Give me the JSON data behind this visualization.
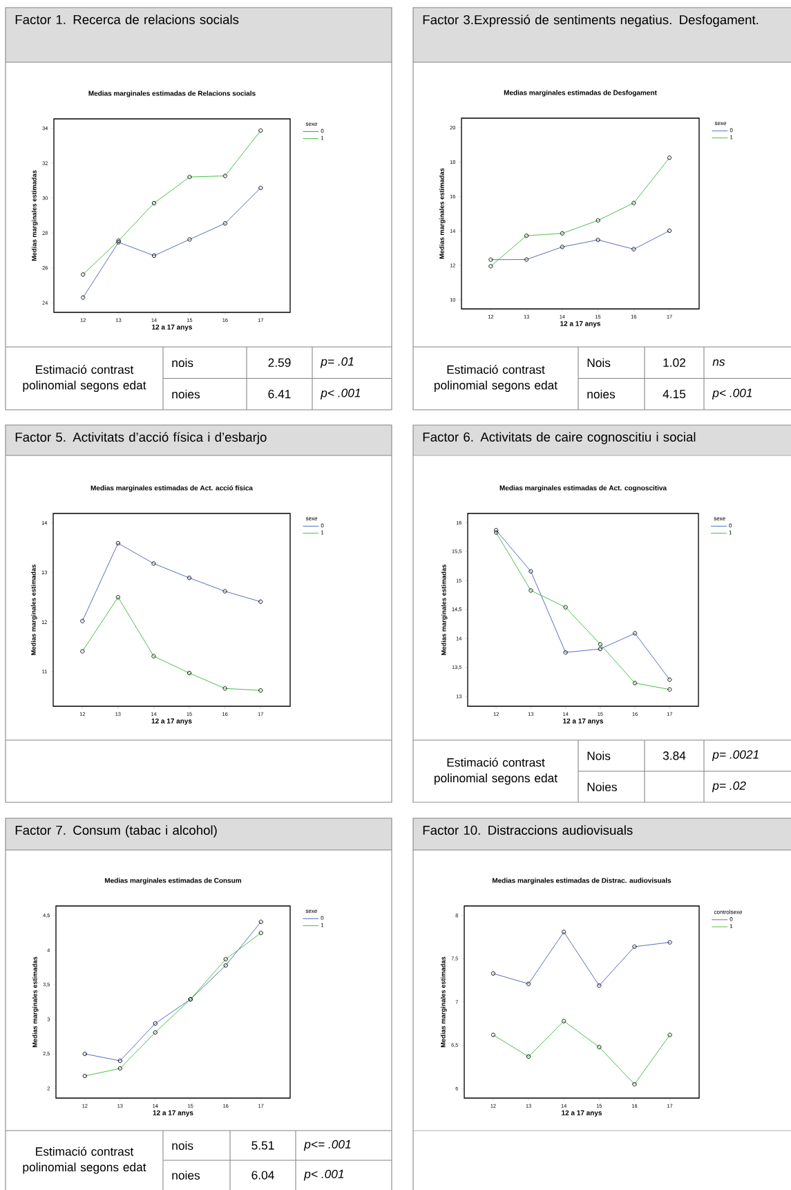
{
  "chart_data": [
    {
      "type": "line",
      "title": "Factor 1. Recerca de relacions socials",
      "subtitle": "Medias marginales estimadas de Relacions socials",
      "xlabel": "12 a 17 anys",
      "ylabel": "Medias marginales estimadas",
      "legend_title": "sexe",
      "legend": "right",
      "marker": "circle",
      "x": [
        12,
        13,
        14,
        15,
        16,
        17
      ],
      "xlim": [
        11.18,
        17.83
      ],
      "xticks": [
        12,
        13,
        14,
        15,
        16,
        17
      ],
      "ylim": [
        23.45,
        34.54
      ],
      "yticks": [
        24,
        26,
        28,
        30,
        32,
        34
      ],
      "series": [
        {
          "name": "0",
          "color": "#4a62c0",
          "values": [
            24.3,
            27.47,
            26.7,
            27.63,
            28.55,
            30.58
          ]
        },
        {
          "name": "1",
          "color": "#3cba3c",
          "values": [
            25.62,
            27.56,
            29.71,
            31.21,
            31.27,
            33.87
          ]
        }
      ],
      "annotations": [
        "Estimació contrast polinomial segons edat",
        "nois",
        "2.59",
        "p= .01",
        "noies",
        "6.41",
        "p< .001"
      ]
    },
    {
      "type": "line",
      "title": "Factor 3.Expressió de sentiments negatius. Desfogament.",
      "subtitle": "Medias marginales estimadas de Desfogament",
      "xlabel": "12 a 17 anys",
      "ylabel": "Medias marginales estimadas",
      "legend_title": "sexe",
      "legend": "right",
      "marker": "circle",
      "x": [
        12,
        13,
        14,
        15,
        16,
        17
      ],
      "xlim": [
        11.18,
        17.83
      ],
      "xticks": [
        12,
        13,
        14,
        15,
        16,
        17
      ],
      "ylim": [
        9.47,
        20.55
      ],
      "yticks": [
        10,
        12,
        14,
        16,
        18,
        20
      ],
      "series": [
        {
          "name": "0",
          "color": "#4a62c0",
          "values": [
            12.33,
            12.34,
            13.07,
            13.48,
            12.94,
            14.01
          ]
        },
        {
          "name": "1",
          "color": "#3cba3c",
          "values": [
            11.95,
            13.72,
            13.86,
            14.61,
            15.62,
            18.25
          ]
        }
      ],
      "annotations": [
        "Estimació contrast polinomial segons edat",
        "Nois",
        "1.02",
        "ns",
        "noies",
        "4.15",
        "p< .001"
      ]
    },
    {
      "type": "line",
      "title": "Factor 5. Activitats d’acció física i d’esbarjo",
      "subtitle": "Medias marginales estimadas de Act. acció física",
      "xlabel": "12 a 17 anys",
      "ylabel": "Medias marginales estimadas",
      "legend_title": "sexe",
      "legend": "right",
      "marker": "circle",
      "x": [
        12,
        13,
        14,
        15,
        16,
        17
      ],
      "xlim": [
        11.18,
        17.83
      ],
      "xticks": [
        12,
        13,
        14,
        15,
        16,
        17
      ],
      "ylim": [
        10.3,
        14.19
      ],
      "yticks": [
        11,
        12,
        13,
        14
      ],
      "series": [
        {
          "name": "0",
          "color": "#4a62c0",
          "values": [
            12.02,
            13.59,
            13.18,
            12.89,
            12.62,
            12.41
          ]
        },
        {
          "name": "1",
          "color": "#3cba3c",
          "values": [
            11.41,
            12.5,
            11.31,
            10.97,
            10.66,
            10.62
          ]
        }
      ]
    },
    {
      "type": "line",
      "title": "Factor 6. Activitats de caire cognoscitiu i social",
      "subtitle": "Medias marginales estimadas de Act. cognoscitiva",
      "xlabel": "12 a 17 anys",
      "ylabel": "Medias marginales estimadas",
      "legend_title": "sexe",
      "legend": "right",
      "marker": "circle",
      "x": [
        12,
        13,
        14,
        15,
        16,
        17
      ],
      "xlim": [
        11.18,
        17.83
      ],
      "xticks": [
        12,
        13,
        14,
        15,
        16,
        17
      ],
      "ylim": [
        12.83,
        16.16
      ],
      "yticks": [
        {
          "value": 13,
          "label": "13"
        },
        {
          "value": 13.5,
          "label": "13,5"
        },
        {
          "value": 14,
          "label": "14"
        },
        {
          "value": 14.5,
          "label": "14,5"
        },
        {
          "value": 15,
          "label": "15"
        },
        {
          "value": 15.5,
          "label": "15,5"
        },
        {
          "value": 16,
          "label": "16"
        }
      ],
      "series": [
        {
          "name": "0",
          "color": "#4a62c0",
          "values": [
            15.87,
            15.16,
            13.76,
            13.82,
            14.09,
            13.29
          ]
        },
        {
          "name": "1",
          "color": "#3cba3c",
          "values": [
            15.83,
            14.83,
            14.54,
            13.9,
            13.23,
            13.12
          ]
        }
      ],
      "annotations": [
        "Estimació contrast polinomial segons edat",
        "Nois",
        "3.84",
        "p= .0021",
        "Noies",
        "p= .02"
      ]
    },
    {
      "type": "line",
      "title": "Factor 7. Consum (tabac i alcohol)",
      "subtitle": "Medias marginales estimadas de Consum",
      "xlabel": "12 a 17 anys",
      "ylabel": "Medias marginales estimadas",
      "legend_title": "sexe",
      "legend": "right",
      "marker": "circle",
      "x": [
        12,
        13,
        14,
        15,
        16,
        17
      ],
      "xlim": [
        11.18,
        17.83
      ],
      "xticks": [
        12,
        13,
        14,
        15,
        16,
        17
      ],
      "ylim": [
        1.86,
        4.64
      ],
      "yticks": [
        {
          "value": 2,
          "label": "2"
        },
        {
          "value": 2.5,
          "label": "2,5"
        },
        {
          "value": 3,
          "label": "3"
        },
        {
          "value": 3.5,
          "label": "3,5"
        },
        {
          "value": 4,
          "label": "4"
        },
        {
          "value": 4.5,
          "label": "4,5"
        }
      ],
      "series": [
        {
          "name": "0",
          "color": "#4a62c0",
          "values": [
            2.5,
            2.4,
            2.94,
            3.29,
            3.78,
            4.41
          ]
        },
        {
          "name": "1",
          "color": "#3cba3c",
          "values": [
            2.18,
            2.29,
            2.81,
            3.29,
            3.87,
            4.25
          ]
        }
      ],
      "annotations": [
        "Estimació contrast polinomial segons edat",
        "nois",
        "5.51",
        "p<= .001",
        "noies",
        "6.04",
        "p< .001"
      ]
    },
    {
      "type": "line",
      "title": "Factor 10. Distraccions audiovisuals",
      "subtitle": "Medias marginales estimadas de Distrac. audiovisuals",
      "xlabel": "12 a 17 anys",
      "ylabel": "Medias marginales estimadas",
      "legend_title": "controlsexe",
      "legend": "right",
      "marker": "circle",
      "x": [
        12,
        13,
        14,
        15,
        16,
        17
      ],
      "xlim": [
        11.18,
        17.83
      ],
      "xticks": [
        12,
        13,
        14,
        15,
        16,
        17
      ],
      "ylim": [
        5.89,
        8.11
      ],
      "yticks": [
        {
          "value": 6,
          "label": "6"
        },
        {
          "value": 6.5,
          "label": "6,5"
        },
        {
          "value": 7,
          "label": "7"
        },
        {
          "value": 7.5,
          "label": "7,5"
        },
        {
          "value": 8,
          "label": "8"
        }
      ],
      "series": [
        {
          "name": "0",
          "color": "#4a62c0",
          "values": [
            7.33,
            7.21,
            7.81,
            7.19,
            7.64,
            7.69
          ]
        },
        {
          "name": "1",
          "color": "#3cba3c",
          "values": [
            6.62,
            6.37,
            6.78,
            6.48,
            6.05,
            6.62
          ]
        }
      ]
    }
  ]
}
